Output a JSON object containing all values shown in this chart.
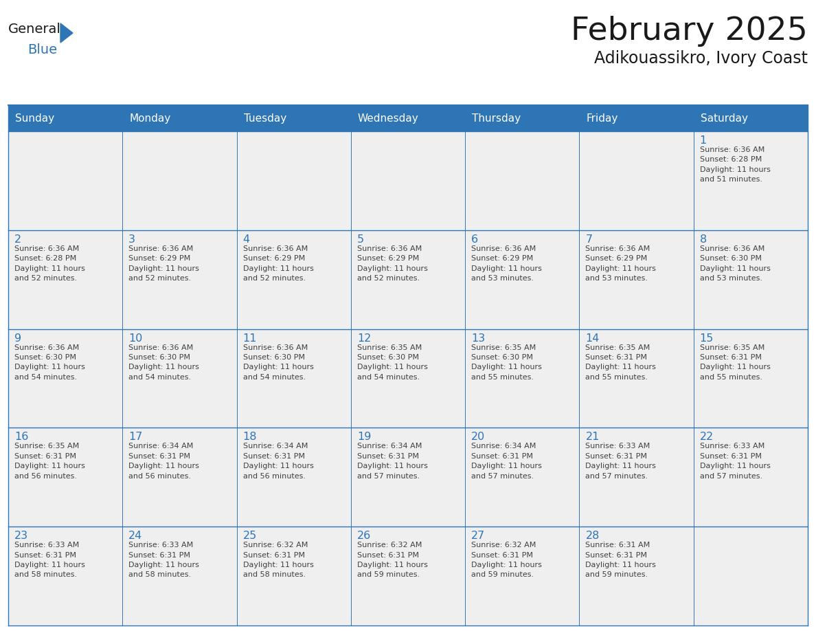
{
  "title": "February 2025",
  "subtitle": "Adikouassikro, Ivory Coast",
  "header_bg_color": "#2E75B6",
  "header_text_color": "#FFFFFF",
  "cell_bg_color": "#EFEFEF",
  "grid_line_color": "#2E75B6",
  "title_color": "#1a1a1a",
  "subtitle_color": "#1a1a1a",
  "day_num_color": "#2E75B6",
  "cell_text_color": "#404040",
  "logo_general_color": "#1a1a1a",
  "logo_blue_color": "#2E75B6",
  "logo_triangle_color": "#2E75B6",
  "day_headers": [
    "Sunday",
    "Monday",
    "Tuesday",
    "Wednesday",
    "Thursday",
    "Friday",
    "Saturday"
  ],
  "weeks": [
    [
      {
        "day": 0,
        "text": ""
      },
      {
        "day": 0,
        "text": ""
      },
      {
        "day": 0,
        "text": ""
      },
      {
        "day": 0,
        "text": ""
      },
      {
        "day": 0,
        "text": ""
      },
      {
        "day": 0,
        "text": ""
      },
      {
        "day": 1,
        "text": "Sunrise: 6:36 AM\nSunset: 6:28 PM\nDaylight: 11 hours\nand 51 minutes."
      }
    ],
    [
      {
        "day": 2,
        "text": "Sunrise: 6:36 AM\nSunset: 6:28 PM\nDaylight: 11 hours\nand 52 minutes."
      },
      {
        "day": 3,
        "text": "Sunrise: 6:36 AM\nSunset: 6:29 PM\nDaylight: 11 hours\nand 52 minutes."
      },
      {
        "day": 4,
        "text": "Sunrise: 6:36 AM\nSunset: 6:29 PM\nDaylight: 11 hours\nand 52 minutes."
      },
      {
        "day": 5,
        "text": "Sunrise: 6:36 AM\nSunset: 6:29 PM\nDaylight: 11 hours\nand 52 minutes."
      },
      {
        "day": 6,
        "text": "Sunrise: 6:36 AM\nSunset: 6:29 PM\nDaylight: 11 hours\nand 53 minutes."
      },
      {
        "day": 7,
        "text": "Sunrise: 6:36 AM\nSunset: 6:29 PM\nDaylight: 11 hours\nand 53 minutes."
      },
      {
        "day": 8,
        "text": "Sunrise: 6:36 AM\nSunset: 6:30 PM\nDaylight: 11 hours\nand 53 minutes."
      }
    ],
    [
      {
        "day": 9,
        "text": "Sunrise: 6:36 AM\nSunset: 6:30 PM\nDaylight: 11 hours\nand 54 minutes."
      },
      {
        "day": 10,
        "text": "Sunrise: 6:36 AM\nSunset: 6:30 PM\nDaylight: 11 hours\nand 54 minutes."
      },
      {
        "day": 11,
        "text": "Sunrise: 6:36 AM\nSunset: 6:30 PM\nDaylight: 11 hours\nand 54 minutes."
      },
      {
        "day": 12,
        "text": "Sunrise: 6:35 AM\nSunset: 6:30 PM\nDaylight: 11 hours\nand 54 minutes."
      },
      {
        "day": 13,
        "text": "Sunrise: 6:35 AM\nSunset: 6:30 PM\nDaylight: 11 hours\nand 55 minutes."
      },
      {
        "day": 14,
        "text": "Sunrise: 6:35 AM\nSunset: 6:31 PM\nDaylight: 11 hours\nand 55 minutes."
      },
      {
        "day": 15,
        "text": "Sunrise: 6:35 AM\nSunset: 6:31 PM\nDaylight: 11 hours\nand 55 minutes."
      }
    ],
    [
      {
        "day": 16,
        "text": "Sunrise: 6:35 AM\nSunset: 6:31 PM\nDaylight: 11 hours\nand 56 minutes."
      },
      {
        "day": 17,
        "text": "Sunrise: 6:34 AM\nSunset: 6:31 PM\nDaylight: 11 hours\nand 56 minutes."
      },
      {
        "day": 18,
        "text": "Sunrise: 6:34 AM\nSunset: 6:31 PM\nDaylight: 11 hours\nand 56 minutes."
      },
      {
        "day": 19,
        "text": "Sunrise: 6:34 AM\nSunset: 6:31 PM\nDaylight: 11 hours\nand 57 minutes."
      },
      {
        "day": 20,
        "text": "Sunrise: 6:34 AM\nSunset: 6:31 PM\nDaylight: 11 hours\nand 57 minutes."
      },
      {
        "day": 21,
        "text": "Sunrise: 6:33 AM\nSunset: 6:31 PM\nDaylight: 11 hours\nand 57 minutes."
      },
      {
        "day": 22,
        "text": "Sunrise: 6:33 AM\nSunset: 6:31 PM\nDaylight: 11 hours\nand 57 minutes."
      }
    ],
    [
      {
        "day": 23,
        "text": "Sunrise: 6:33 AM\nSunset: 6:31 PM\nDaylight: 11 hours\nand 58 minutes."
      },
      {
        "day": 24,
        "text": "Sunrise: 6:33 AM\nSunset: 6:31 PM\nDaylight: 11 hours\nand 58 minutes."
      },
      {
        "day": 25,
        "text": "Sunrise: 6:32 AM\nSunset: 6:31 PM\nDaylight: 11 hours\nand 58 minutes."
      },
      {
        "day": 26,
        "text": "Sunrise: 6:32 AM\nSunset: 6:31 PM\nDaylight: 11 hours\nand 59 minutes."
      },
      {
        "day": 27,
        "text": "Sunrise: 6:32 AM\nSunset: 6:31 PM\nDaylight: 11 hours\nand 59 minutes."
      },
      {
        "day": 28,
        "text": "Sunrise: 6:31 AM\nSunset: 6:31 PM\nDaylight: 11 hours\nand 59 minutes."
      },
      {
        "day": 0,
        "text": ""
      }
    ]
  ],
  "fig_width": 11.88,
  "fig_height": 9.18,
  "dpi": 100
}
